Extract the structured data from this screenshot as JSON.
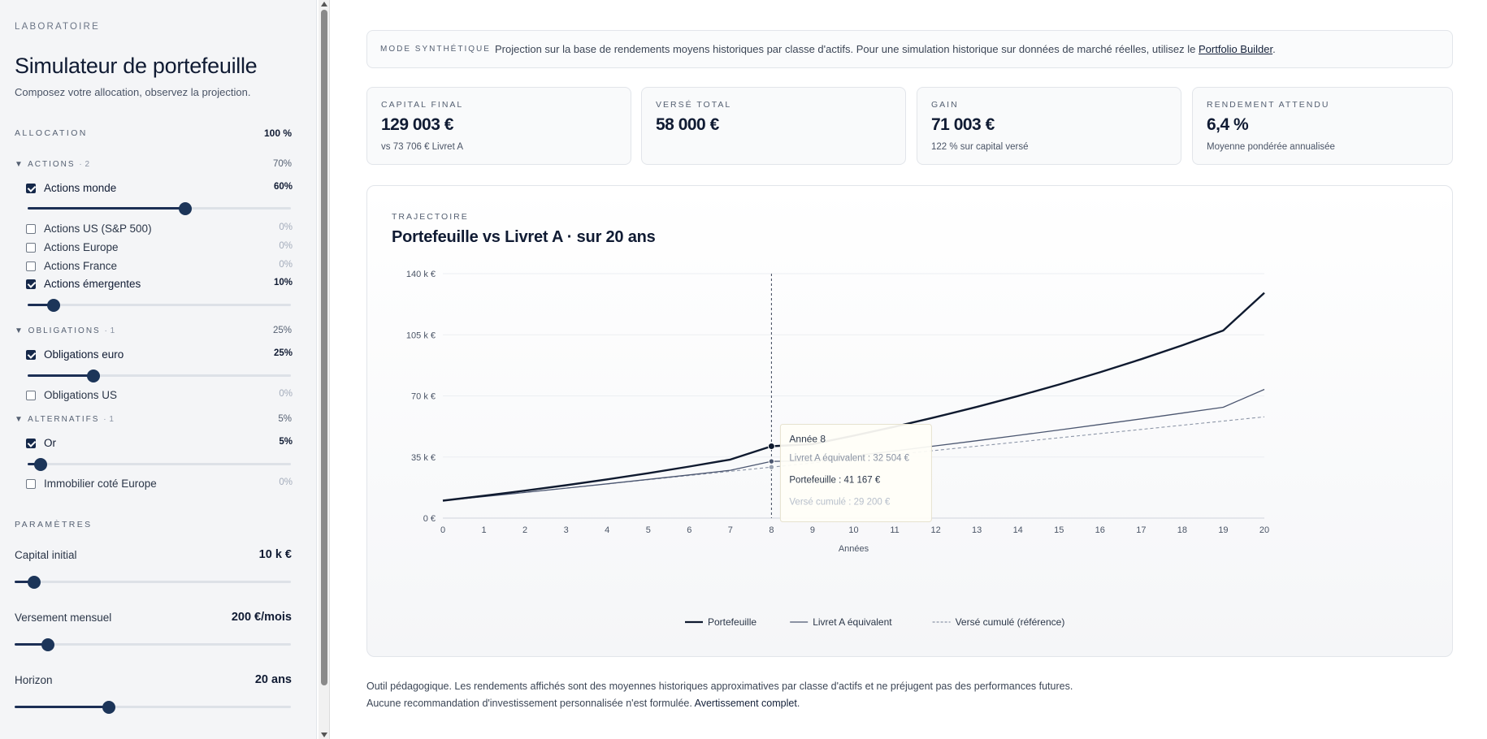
{
  "sidebar": {
    "kicker": "LABORATOIRE",
    "title": "Simulateur de portefeuille",
    "subtitle": "Composez votre allocation, observez la projection.",
    "allocation": {
      "label": "ALLOCATION",
      "total": "100 %",
      "groups": [
        {
          "name": "▼ ACTIONS",
          "count": "· 2",
          "value": "70%",
          "assets": [
            {
              "label": "Actions monde",
              "checked": true,
              "value": "60%",
              "level": 0.6
            },
            {
              "label": "Actions US (S&P 500)",
              "checked": false,
              "value": "0%"
            },
            {
              "label": "Actions Europe",
              "checked": false,
              "value": "0%"
            },
            {
              "label": "Actions France",
              "checked": false,
              "value": "0%"
            },
            {
              "label": "Actions émergentes",
              "checked": true,
              "value": "10%",
              "level": 0.1
            }
          ]
        },
        {
          "name": "▼ OBLIGATIONS",
          "count": "· 1",
          "value": "25%",
          "assets": [
            {
              "label": "Obligations euro",
              "checked": true,
              "value": "25%",
              "level": 0.25
            },
            {
              "label": "Obligations US",
              "checked": false,
              "value": "0%"
            }
          ]
        },
        {
          "name": "▼ ALTERNATIFS",
          "count": "· 1",
          "value": "5%",
          "assets": [
            {
              "label": "Or",
              "checked": true,
              "value": "5%",
              "level": 0.05
            },
            {
              "label": "Immobilier coté Europe",
              "checked": false,
              "value": "0%"
            }
          ]
        }
      ]
    },
    "params": {
      "label": "PARAMÈTRES",
      "capital_label": "Capital initial",
      "capital_value": "10 k €",
      "capital_level": 0.07,
      "monthly_label": "Versement mensuel",
      "monthly_value": "200 €/mois",
      "monthly_level": 0.12,
      "horizon_label": "Horizon",
      "horizon_value": "20 ans",
      "horizon_level": 0.34
    }
  },
  "banner": {
    "tag": "MODE SYNTHÉTIQUE",
    "text": "Projection sur la base de rendements moyens historiques par classe d'actifs. Pour une simulation historique sur données de marché réelles, utilisez le ",
    "link": "Portfolio Builder",
    "suffix": "."
  },
  "kpis": [
    {
      "label": "CAPITAL FINAL",
      "value": "129 003 €",
      "note": "vs 73 706 € Livret A"
    },
    {
      "label": "VERSÉ TOTAL",
      "value": "58 000 €",
      "note": ""
    },
    {
      "label": "GAIN",
      "value": "71 003 €",
      "note": "122 % sur capital versé"
    },
    {
      "label": "RENDEMENT ATTENDU",
      "value": "6,4 %",
      "note": "Moyenne pondérée annualisée"
    }
  ],
  "chart": {
    "kicker": "TRAJECTOIRE",
    "title": "Portefeuille vs Livret A · sur 20 ans"
  },
  "chart_data": {
    "type": "line",
    "x": [
      0,
      1,
      2,
      3,
      4,
      5,
      6,
      7,
      8,
      9,
      10,
      11,
      12,
      13,
      14,
      15,
      16,
      17,
      18,
      19,
      20
    ],
    "xlabel": "Années",
    "ylabel": "",
    "ylim": [
      0,
      140000
    ],
    "yticks": [
      0,
      35000,
      70000,
      105000,
      140000
    ],
    "ytick_labels": [
      "0 €",
      "35 k €",
      "70 k €",
      "105 k €",
      "140 k €"
    ],
    "grid": true,
    "legend": "bottom",
    "series": [
      {
        "name": "Portefeuille",
        "color": "#0f1a2f",
        "style": "solid",
        "values": [
          10000,
          12770,
          15717,
          18853,
          22190,
          25741,
          29520,
          33541,
          41167,
          42363,
          47206,
          52360,
          57844,
          63679,
          69888,
          76495,
          83525,
          91005,
          98964,
          107433,
          129003
        ]
      },
      {
        "name": "Livret A équivalent",
        "color": "#4b5670",
        "style": "solid",
        "values": [
          10000,
          12336,
          14719,
          17151,
          19632,
          22163,
          24746,
          27381,
          32504,
          32812,
          35609,
          38463,
          41375,
          44347,
          47379,
          50472,
          53628,
          56849,
          60135,
          63488,
          73706
        ]
      },
      {
        "name": "Versé cumulé (référence)",
        "color": "#8d96a8",
        "style": "dashed",
        "values": [
          10000,
          12400,
          14800,
          17200,
          19600,
          22000,
          24400,
          26800,
          29200,
          31600,
          34000,
          36400,
          38800,
          41200,
          43600,
          46000,
          48400,
          50800,
          53200,
          55600,
          58000
        ]
      }
    ],
    "tooltip": {
      "x": 8,
      "title": "Année 8",
      "lines": [
        {
          "label": "Livret A équivalent : 32 504 €",
          "color": "#8a93a3"
        },
        {
          "label": "Portefeuille : 41 167 €",
          "color": "#2b3648"
        },
        {
          "label": "Versé cumulé : 29 200 €",
          "color": "#b7bfcb"
        }
      ]
    }
  },
  "disclaimer": {
    "text": "Outil pédagogique. Les rendements affichés sont des moyennes historiques approximatives par classe d'actifs et ne préjugent pas des performances futures. Aucune recommandation d'investissement personnalisée n'est formulée. ",
    "link": "Avertissement complet",
    "suffix": "."
  }
}
